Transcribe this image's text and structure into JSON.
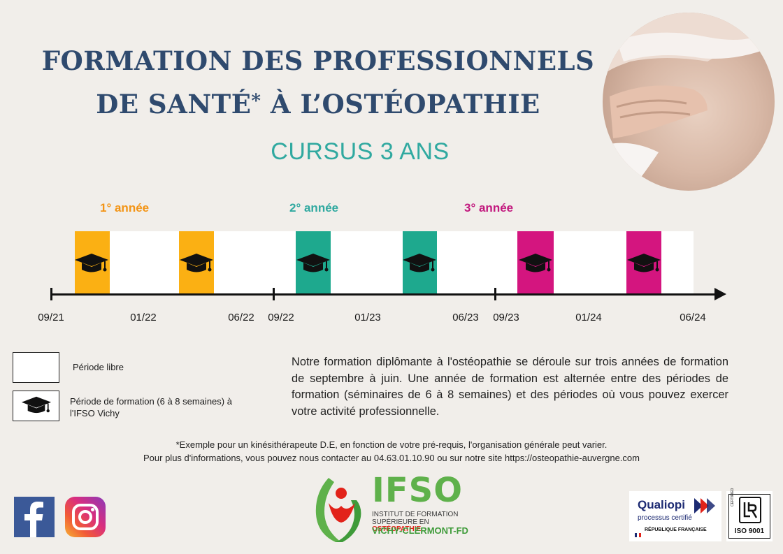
{
  "title": {
    "line1": "FORMATION DES PROFESSIONNELS",
    "line2": "DE SANTÉ",
    "star": "*",
    "line2_end": " À L’OSTÉOPATHIE"
  },
  "subtitle": "CURSUS 3 ANS",
  "years": [
    {
      "label": "1° année",
      "color": "#f39415"
    },
    {
      "label": "2° année",
      "color": "#30a9a0"
    },
    {
      "label": "3° année",
      "color": "#c2187e"
    }
  ],
  "timeline": {
    "colors": {
      "year1": "#fbb013",
      "year2": "#1ea98e",
      "year3": "#d4157f"
    },
    "dates": [
      "09/21",
      "01/22",
      "06/22",
      "09/22",
      "01/23",
      "06/23",
      "09/23",
      "01/24",
      "06/24"
    ]
  },
  "legend": {
    "free": "Période libre",
    "training_line1": "Période de formation (6 à 8 semaines) à",
    "training_line2": "l'IFSO Vichy"
  },
  "description": "Notre formation diplômante à l'ostéopathie se déroule sur trois années de formation de septembre à juin. Une année de formation est alternée entre des périodes de formation (séminaires de 6 à 8 semaines) et des périodes où vous pouvez exercer votre activité professionnelle.",
  "footnote1": "*Exemple pour un kinésithérapeute D.E, en fonction de votre pré-requis, l'organisation générale peut varier.",
  "footnote2": "Pour plus d'informations, vous pouvez nous contacter au 04.63.01.10.90 ou sur notre site https://osteopathie-auvergne.com",
  "logo": {
    "name": "IFSO",
    "line1": "INSTITUT DE FORMATION",
    "line2a": "SUPÉRIEURE EN ",
    "line2b": "OSTÉOPATHIE",
    "line3": "VICHY-CLERMONT-FD"
  },
  "qualiopi": {
    "name": "Qualiopi",
    "sub": "processus certifié",
    "rf": "RÉPUBLIQUE FRANÇAISE"
  },
  "iso": {
    "certified": "CERTIFIED",
    "label": "ISO 9001"
  },
  "icons": [
    "graduation-cap-icon",
    "facebook-icon",
    "instagram-icon"
  ]
}
